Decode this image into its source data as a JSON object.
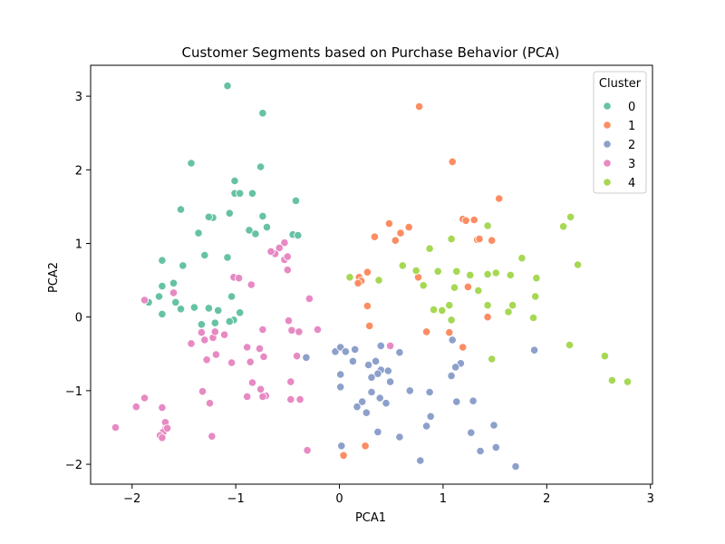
{
  "chart_data": {
    "type": "scatter",
    "title": "Customer Segments based on Purchase Behavior (PCA)",
    "xlabel": "PCA1",
    "ylabel": "PCA2",
    "xlim": [
      -2.4,
      3.02
    ],
    "ylim": [
      -2.27,
      3.42
    ],
    "xticks": [
      -2,
      -1,
      0,
      1,
      2,
      3
    ],
    "yticks": [
      -2,
      -1,
      0,
      1,
      2,
      3
    ],
    "grid": false,
    "legend": {
      "title": "Cluster",
      "placement": "top-right"
    },
    "series": [
      {
        "name": "0",
        "color": "#66c2a5",
        "points": [
          [
            -1.08,
            3.14
          ],
          [
            -0.74,
            2.77
          ],
          [
            -1.43,
            2.09
          ],
          [
            -0.76,
            2.04
          ],
          [
            -1.01,
            1.85
          ],
          [
            -1.01,
            1.68
          ],
          [
            -0.96,
            1.68
          ],
          [
            -0.84,
            1.68
          ],
          [
            -0.42,
            1.58
          ],
          [
            -1.53,
            1.46
          ],
          [
            -1.06,
            1.41
          ],
          [
            -1.22,
            1.35
          ],
          [
            -1.26,
            1.36
          ],
          [
            -0.74,
            1.37
          ],
          [
            -0.7,
            1.22
          ],
          [
            -0.87,
            1.18
          ],
          [
            -0.81,
            1.13
          ],
          [
            -1.36,
            1.14
          ],
          [
            -0.45,
            1.12
          ],
          [
            -0.4,
            1.11
          ],
          [
            -1.08,
            0.81
          ],
          [
            -1.3,
            0.84
          ],
          [
            -1.71,
            0.77
          ],
          [
            -1.51,
            0.7
          ],
          [
            -1.6,
            0.46
          ],
          [
            -1.71,
            0.42
          ],
          [
            -1.04,
            0.28
          ],
          [
            -1.74,
            0.28
          ],
          [
            -1.84,
            0.2
          ],
          [
            -1.58,
            0.2
          ],
          [
            -1.53,
            0.11
          ],
          [
            -1.4,
            0.13
          ],
          [
            -1.17,
            0.09
          ],
          [
            -1.26,
            0.12
          ],
          [
            -0.96,
            0.06
          ],
          [
            -1.71,
            0.04
          ],
          [
            -1.2,
            -0.08
          ],
          [
            -1.33,
            -0.1
          ],
          [
            -1.02,
            -0.04
          ],
          [
            -1.06,
            -0.06
          ]
        ]
      },
      {
        "name": "1",
        "color": "#fc8d62",
        "points": [
          [
            0.77,
            2.86
          ],
          [
            1.09,
            2.11
          ],
          [
            1.54,
            1.61
          ],
          [
            1.19,
            1.33
          ],
          [
            1.3,
            1.32
          ],
          [
            1.22,
            1.31
          ],
          [
            0.48,
            1.27
          ],
          [
            0.67,
            1.22
          ],
          [
            0.59,
            1.14
          ],
          [
            0.34,
            1.09
          ],
          [
            0.54,
            1.04
          ],
          [
            1.33,
            1.05
          ],
          [
            1.35,
            1.06
          ],
          [
            1.47,
            1.04
          ],
          [
            0.27,
            0.61
          ],
          [
            0.19,
            0.54
          ],
          [
            0.21,
            0.49
          ],
          [
            0.18,
            0.46
          ],
          [
            0.76,
            0.54
          ],
          [
            1.24,
            0.41
          ],
          [
            0.27,
            0.15
          ],
          [
            0.29,
            -0.12
          ],
          [
            1.43,
            0.0
          ],
          [
            0.84,
            -0.2
          ],
          [
            1.06,
            -0.21
          ],
          [
            1.19,
            -0.41
          ],
          [
            0.25,
            -1.75
          ],
          [
            0.04,
            -1.88
          ]
        ]
      },
      {
        "name": "2",
        "color": "#8da0cb",
        "points": [
          [
            -0.32,
            -0.55
          ],
          [
            -0.04,
            -0.47
          ],
          [
            0.01,
            -0.41
          ],
          [
            0.06,
            -0.47
          ],
          [
            0.15,
            -0.44
          ],
          [
            0.4,
            -0.39
          ],
          [
            0.58,
            -0.48
          ],
          [
            1.09,
            -0.31
          ],
          [
            1.88,
            -0.45
          ],
          [
            0.13,
            -0.6
          ],
          [
            0.35,
            -0.6
          ],
          [
            1.17,
            -0.63
          ],
          [
            0.28,
            -0.65
          ],
          [
            0.4,
            -0.72
          ],
          [
            0.47,
            -0.73
          ],
          [
            0.37,
            -0.77
          ],
          [
            1.12,
            -0.68
          ],
          [
            1.08,
            -0.8
          ],
          [
            0.01,
            -0.78
          ],
          [
            0.49,
            -0.88
          ],
          [
            0.31,
            -0.82
          ],
          [
            0.22,
            -1.15
          ],
          [
            0.17,
            -1.22
          ],
          [
            0.31,
            -1.02
          ],
          [
            0.39,
            -1.1
          ],
          [
            0.45,
            -1.17
          ],
          [
            0.26,
            -1.3
          ],
          [
            0.68,
            -1.0
          ],
          [
            0.87,
            -1.02
          ],
          [
            1.13,
            -1.15
          ],
          [
            1.29,
            -1.14
          ],
          [
            0.01,
            -0.95
          ],
          [
            1.27,
            -1.57
          ],
          [
            0.88,
            -1.35
          ],
          [
            0.84,
            -1.48
          ],
          [
            0.37,
            -1.56
          ],
          [
            0.58,
            -1.63
          ],
          [
            1.49,
            -1.47
          ],
          [
            1.51,
            -1.77
          ],
          [
            1.36,
            -1.82
          ],
          [
            0.78,
            -1.95
          ],
          [
            1.7,
            -2.03
          ],
          [
            0.02,
            -1.75
          ]
        ]
      },
      {
        "name": "3",
        "color": "#e78ac3",
        "points": [
          [
            -0.53,
            1.01
          ],
          [
            -0.58,
            0.94
          ],
          [
            -0.62,
            0.86
          ],
          [
            -0.66,
            0.89
          ],
          [
            -0.53,
            0.78
          ],
          [
            -0.5,
            0.82
          ],
          [
            -0.5,
            0.64
          ],
          [
            -1.02,
            0.54
          ],
          [
            -0.97,
            0.53
          ],
          [
            -0.85,
            0.44
          ],
          [
            -1.6,
            0.33
          ],
          [
            -1.88,
            0.23
          ],
          [
            -0.29,
            0.25
          ],
          [
            -0.49,
            -0.05
          ],
          [
            -0.46,
            -0.18
          ],
          [
            -0.39,
            -0.2
          ],
          [
            -0.21,
            -0.17
          ],
          [
            -0.74,
            -0.17
          ],
          [
            -1.22,
            -0.28
          ],
          [
            -1.43,
            -0.36
          ],
          [
            -1.2,
            -0.2
          ],
          [
            -1.11,
            -0.24
          ],
          [
            -1.33,
            -0.21
          ],
          [
            -1.3,
            -0.31
          ],
          [
            -0.89,
            -0.41
          ],
          [
            -0.77,
            -0.43
          ],
          [
            -0.73,
            -0.54
          ],
          [
            -1.19,
            -0.51
          ],
          [
            -1.28,
            -0.58
          ],
          [
            -1.04,
            -0.62
          ],
          [
            -0.41,
            -0.53
          ],
          [
            -0.47,
            -0.88
          ],
          [
            -0.76,
            -0.98
          ],
          [
            -0.71,
            -1.07
          ],
          [
            -0.84,
            -0.89
          ],
          [
            -1.32,
            -1.01
          ],
          [
            -0.89,
            -1.08
          ],
          [
            -0.74,
            -1.08
          ],
          [
            -0.47,
            -1.12
          ],
          [
            -0.38,
            -1.12
          ],
          [
            -0.86,
            -0.61
          ],
          [
            -1.88,
            -1.1
          ],
          [
            -1.96,
            -1.22
          ],
          [
            -1.71,
            -1.23
          ],
          [
            -1.25,
            -1.17
          ],
          [
            -1.68,
            -1.43
          ],
          [
            -1.68,
            -1.52
          ],
          [
            -1.7,
            -1.56
          ],
          [
            -1.66,
            -1.51
          ],
          [
            -1.73,
            -1.61
          ],
          [
            -1.71,
            -1.64
          ],
          [
            -2.16,
            -1.5
          ],
          [
            -1.23,
            -1.62
          ],
          [
            -0.31,
            -1.81
          ],
          [
            0.49,
            -0.39
          ]
        ]
      },
      {
        "name": "4",
        "color": "#a6d854",
        "points": [
          [
            2.23,
            1.36
          ],
          [
            2.16,
            1.23
          ],
          [
            1.43,
            1.24
          ],
          [
            1.08,
            1.06
          ],
          [
            0.87,
            0.93
          ],
          [
            1.76,
            0.8
          ],
          [
            2.3,
            0.71
          ],
          [
            0.61,
            0.7
          ],
          [
            0.74,
            0.63
          ],
          [
            0.95,
            0.62
          ],
          [
            1.13,
            0.62
          ],
          [
            1.26,
            0.57
          ],
          [
            1.51,
            0.6
          ],
          [
            1.43,
            0.58
          ],
          [
            1.65,
            0.57
          ],
          [
            1.9,
            0.53
          ],
          [
            0.1,
            0.54
          ],
          [
            0.38,
            0.5
          ],
          [
            0.81,
            0.43
          ],
          [
            1.11,
            0.4
          ],
          [
            1.34,
            0.36
          ],
          [
            1.89,
            0.28
          ],
          [
            1.06,
            0.16
          ],
          [
            1.43,
            0.16
          ],
          [
            1.67,
            0.16
          ],
          [
            0.91,
            0.1
          ],
          [
            0.99,
            0.09
          ],
          [
            1.63,
            0.07
          ],
          [
            1.87,
            -0.01
          ],
          [
            1.08,
            -0.04
          ],
          [
            2.22,
            -0.38
          ],
          [
            2.56,
            -0.53
          ],
          [
            1.47,
            -0.57
          ],
          [
            2.63,
            -0.86
          ],
          [
            2.78,
            -0.88
          ]
        ]
      }
    ]
  }
}
